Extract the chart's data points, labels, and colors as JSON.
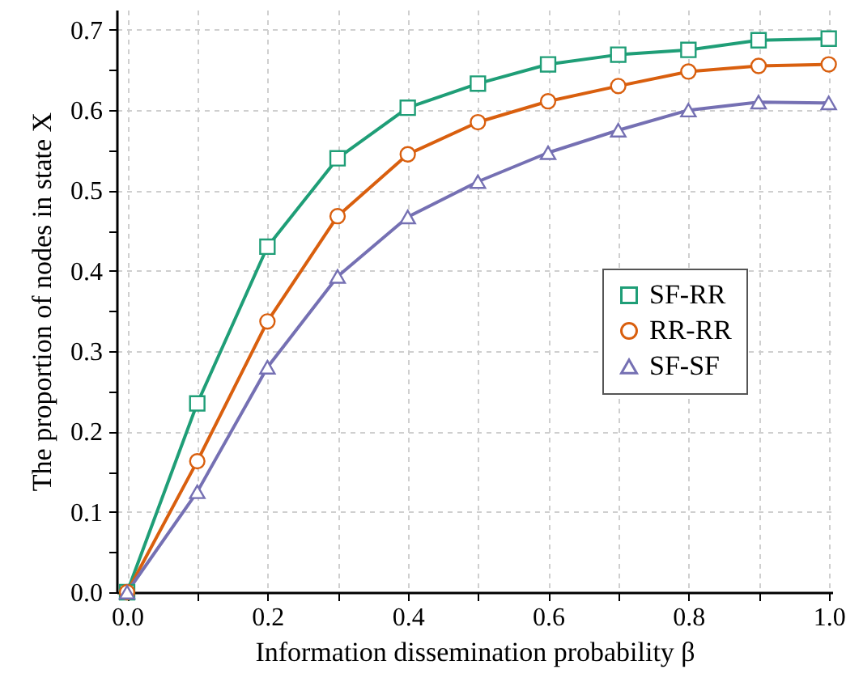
{
  "chart_data": {
    "type": "line",
    "xlabel": "Information dissemination probability β",
    "ylabel": "The proportion of nodes in state X",
    "x": [
      0,
      0.1,
      0.2,
      0.3,
      0.4,
      0.5,
      0.6,
      0.7,
      0.8,
      0.9,
      1.0
    ],
    "series": [
      {
        "name": "SF-RR",
        "color": "#1f9e77",
        "marker": "square",
        "values": [
          0,
          0.235,
          0.43,
          0.54,
          0.603,
          0.633,
          0.657,
          0.669,
          0.675,
          0.687,
          0.689
        ]
      },
      {
        "name": "RR-RR",
        "color": "#d95f0e",
        "marker": "circle",
        "values": [
          0,
          0.163,
          0.337,
          0.468,
          0.545,
          0.585,
          0.611,
          0.63,
          0.648,
          0.655,
          0.657
        ]
      },
      {
        "name": "SF-SF",
        "color": "#7570b3",
        "marker": "triangle",
        "values": [
          0,
          0.125,
          0.28,
          0.393,
          0.467,
          0.511,
          0.547,
          0.575,
          0.6,
          0.61,
          0.609
        ]
      }
    ],
    "xlim": [
      -0.015,
      1.005
    ],
    "ylim": [
      0,
      0.725
    ],
    "xticks": [
      {
        "value": 0,
        "label": "0.0"
      },
      {
        "value": 0.1,
        "label": null
      },
      0.2,
      {
        "value": 0.3,
        "label": null
      },
      0.4,
      {
        "value": 0.5,
        "label": null
      },
      0.6,
      {
        "value": 0.7,
        "label": null
      },
      0.8,
      {
        "value": 0.9,
        "label": null
      },
      {
        "value": 1.0,
        "label": "1.0"
      }
    ],
    "yticks": [
      {
        "value": 0,
        "label": "0.0"
      },
      {
        "value": 0.05,
        "label": null
      },
      0.1,
      {
        "value": 0.15,
        "label": null
      },
      0.2,
      {
        "value": 0.25,
        "label": null
      },
      0.3,
      {
        "value": 0.35,
        "label": null
      },
      0.4,
      {
        "value": 0.45,
        "label": null
      },
      0.5,
      {
        "value": 0.55,
        "label": null
      },
      0.6,
      {
        "value": 0.65,
        "label": null
      },
      0.7
    ],
    "grid": true,
    "legend": "right"
  }
}
